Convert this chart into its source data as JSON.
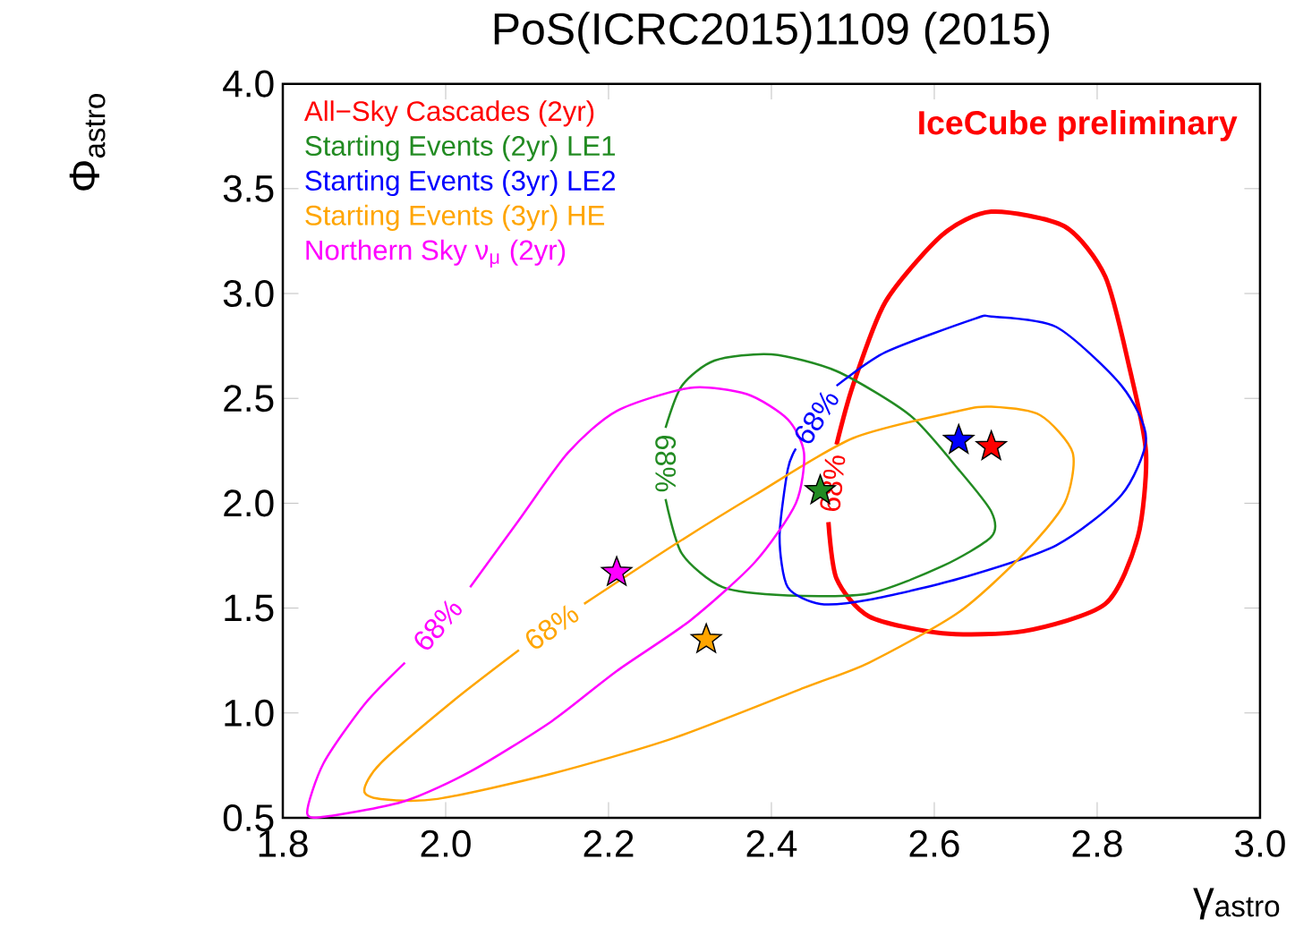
{
  "chart_data": {
    "type": "line",
    "title": "PoS(ICRC2015)1109 (2015)",
    "xlabel": "γ$_{astro}$",
    "ylabel": "Φ$_{astro}$",
    "xlim": [
      1.8,
      3.0
    ],
    "ylim": [
      0.5,
      4.0
    ],
    "xticks": [
      {
        "value": 1.8,
        "label": "1.8"
      },
      {
        "value": 2.0,
        "label": "2.0"
      },
      {
        "value": 2.2,
        "label": "2.2"
      },
      {
        "value": 2.4,
        "label": "2.4"
      },
      {
        "value": 2.6,
        "label": "2.6"
      },
      {
        "value": 2.8,
        "label": "2.8"
      },
      {
        "value": 3.0,
        "label": "3.0"
      }
    ],
    "yticks": [
      {
        "value": 0.5,
        "label": "0.5"
      },
      {
        "value": 1.0,
        "label": "1.0"
      },
      {
        "value": 1.5,
        "label": "1.5"
      },
      {
        "value": 2.0,
        "label": "2.0"
      },
      {
        "value": 2.5,
        "label": "2.5"
      },
      {
        "value": 3.0,
        "label": "3.0"
      },
      {
        "value": 3.5,
        "label": "3.5"
      },
      {
        "value": 4.0,
        "label": "4.0"
      }
    ],
    "grid": false,
    "legend": "top left",
    "marker": "none",
    "series": [
      {
        "name": "All−Sky Cascades (2yr)",
        "color": "#ff0000",
        "x": [
          2.47,
          2.48,
          2.52,
          2.61,
          2.71,
          2.81,
          2.85,
          2.86,
          2.84,
          2.81,
          2.76,
          2.67,
          2.61,
          2.54,
          2.5,
          2.48
        ],
        "values": [
          1.91,
          1.64,
          1.46,
          1.38,
          1.39,
          1.52,
          1.84,
          2.24,
          2.64,
          3.08,
          3.32,
          3.39,
          3.28,
          2.96,
          2.56,
          2.28
        ]
      },
      {
        "name": "Starting Events (2yr) LE1",
        "color": "#228b22",
        "x": [
          2.27,
          2.29,
          2.34,
          2.42,
          2.52,
          2.61,
          2.67,
          2.67,
          2.63,
          2.57,
          2.48,
          2.4,
          2.33,
          2.29,
          2.27
        ],
        "values": [
          2.02,
          1.76,
          1.6,
          1.56,
          1.57,
          1.7,
          1.84,
          1.96,
          2.16,
          2.42,
          2.63,
          2.71,
          2.68,
          2.56,
          2.36
        ]
      },
      {
        "name": "Starting Events (3yr) LE2",
        "color": "#0000ff",
        "x": [
          2.48,
          2.54,
          2.65,
          2.67,
          2.75,
          2.83,
          2.86,
          2.83,
          2.75,
          2.63,
          2.52,
          2.46,
          2.42,
          2.41,
          2.42,
          2.43
        ],
        "values": [
          2.56,
          2.72,
          2.88,
          2.89,
          2.84,
          2.56,
          2.31,
          2.04,
          1.8,
          1.64,
          1.54,
          1.52,
          1.6,
          1.84,
          2.16,
          2.26
        ]
      },
      {
        "name": "Starting Events (3yr) HE",
        "color": "#ffa500",
        "x": [
          2.17,
          2.28,
          2.38,
          2.5,
          2.63,
          2.67,
          2.73,
          2.77,
          2.76,
          2.71,
          2.63,
          2.52,
          2.44,
          2.28,
          2.13,
          1.99,
          1.92,
          1.9,
          1.92,
          2.01,
          2.09
        ],
        "values": [
          1.52,
          1.8,
          2.04,
          2.31,
          2.44,
          2.46,
          2.42,
          2.24,
          2.0,
          1.76,
          1.48,
          1.24,
          1.12,
          0.88,
          0.71,
          0.59,
          0.59,
          0.63,
          0.76,
          1.06,
          1.3
        ]
      },
      {
        "name": "Northern Sky ν$_{μ}$ (2yr)",
        "color": "#ff00ff",
        "x": [
          2.03,
          2.09,
          2.15,
          2.21,
          2.3,
          2.37,
          2.42,
          2.44,
          2.43,
          2.38,
          2.3,
          2.21,
          2.13,
          2.03,
          1.95,
          1.86,
          1.83,
          1.85,
          1.9,
          1.95
        ],
        "values": [
          1.6,
          1.92,
          2.24,
          2.44,
          2.55,
          2.52,
          2.4,
          2.24,
          2.0,
          1.72,
          1.44,
          1.2,
          0.96,
          0.72,
          0.58,
          0.51,
          0.52,
          0.76,
          1.04,
          1.24
        ]
      },
      {
        "type": "scatter",
        "marker": "star",
        "x": [
          2.67,
          2.46,
          2.63,
          2.32,
          2.21
        ],
        "values": [
          2.27,
          2.06,
          2.3,
          1.35,
          1.67
        ],
        "colors": [
          "#ff0000",
          "#228b22",
          "#0000ff",
          "#ffa500",
          "#ff00ff"
        ]
      }
    ],
    "annotations": [
      "IceCube preliminary",
      "68%",
      "68%",
      "68%",
      "68%",
      "68%"
    ]
  }
}
